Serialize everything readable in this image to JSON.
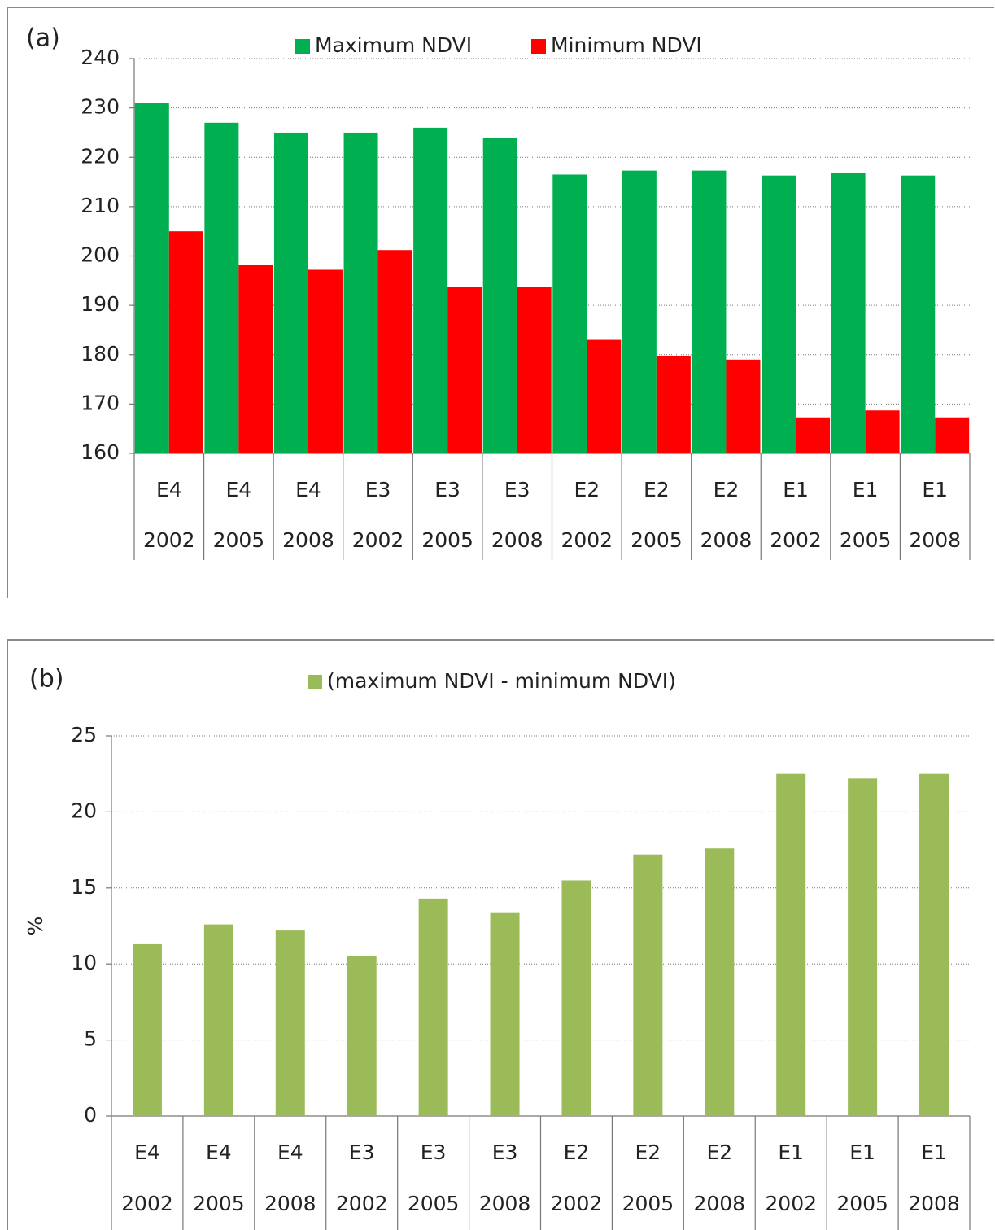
{
  "chart_data": [
    {
      "type": "bar",
      "title": "(a)",
      "categories": [
        [
          "E4",
          "2002"
        ],
        [
          "E4",
          "2005"
        ],
        [
          "E4",
          "2008"
        ],
        [
          "E3",
          "2002"
        ],
        [
          "E3",
          "2005"
        ],
        [
          "E3",
          "2008"
        ],
        [
          "E2",
          "2002"
        ],
        [
          "E2",
          "2005"
        ],
        [
          "E2",
          "2008"
        ],
        [
          "E1",
          "2002"
        ],
        [
          "E1",
          "2005"
        ],
        [
          "E1",
          "2008"
        ]
      ],
      "series": [
        {
          "name": "Maximum NDVI",
          "color": "#00b050",
          "values": [
            231,
            227,
            225,
            225,
            226,
            224,
            216.5,
            217.3,
            217.3,
            216.3,
            216.8,
            216.3
          ]
        },
        {
          "name": "Minimum NDVI",
          "color": "#ff0000",
          "values": [
            205,
            198.2,
            197.2,
            201.2,
            193.7,
            193.7,
            183,
            179.8,
            179,
            167.3,
            168.7,
            167.3
          ]
        }
      ],
      "ylim": [
        160,
        240
      ],
      "yticks": [
        160,
        170,
        180,
        190,
        200,
        210,
        220,
        230,
        240
      ],
      "grid": true
    },
    {
      "type": "bar",
      "title": "(b)",
      "y_label": "%",
      "categories": [
        [
          "E4",
          "2002"
        ],
        [
          "E4",
          "2005"
        ],
        [
          "E4",
          "2008"
        ],
        [
          "E3",
          "2002"
        ],
        [
          "E3",
          "2005"
        ],
        [
          "E3",
          "2008"
        ],
        [
          "E2",
          "2002"
        ],
        [
          "E2",
          "2005"
        ],
        [
          "E2",
          "2008"
        ],
        [
          "E1",
          "2002"
        ],
        [
          "E1",
          "2005"
        ],
        [
          "E1",
          "2008"
        ]
      ],
      "series": [
        {
          "name": "(maximum NDVI - minimum NDVI)",
          "color": "#9bbb59",
          "values": [
            11.3,
            12.6,
            12.2,
            10.5,
            14.3,
            13.4,
            15.5,
            17.2,
            17.6,
            22.5,
            22.2,
            22.5
          ]
        }
      ],
      "ylim": [
        0,
        25
      ],
      "yticks": [
        0,
        5,
        10,
        15,
        20,
        25
      ],
      "grid": true
    }
  ]
}
